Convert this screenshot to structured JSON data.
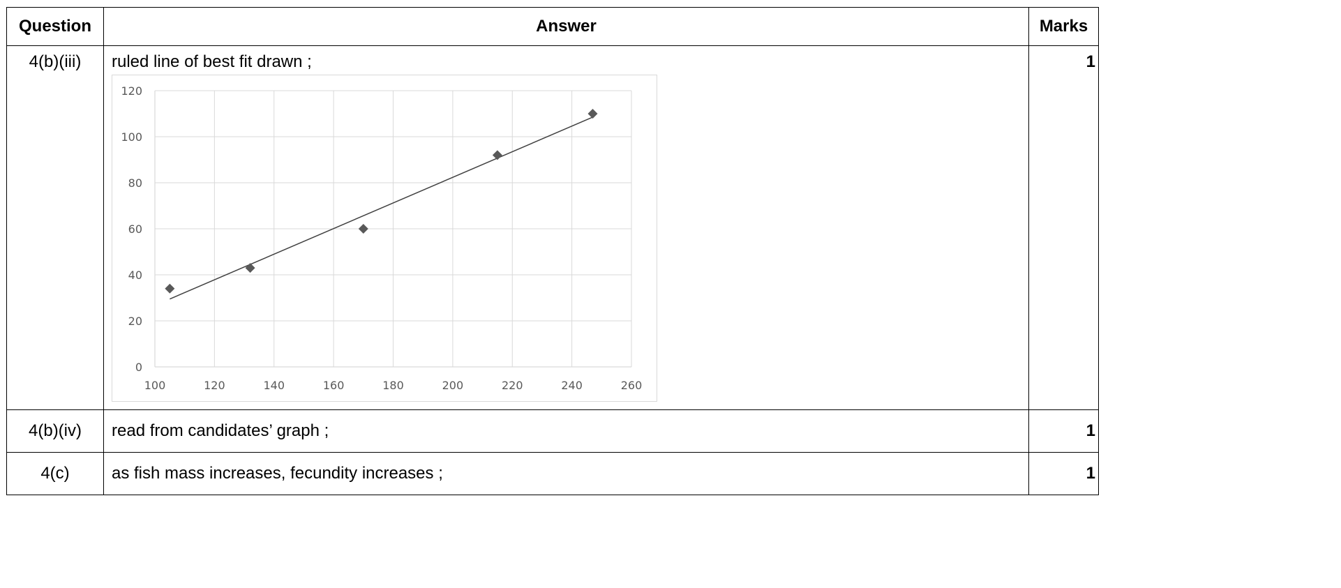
{
  "table": {
    "headers": {
      "question": "Question",
      "answer": "Answer",
      "marks": "Marks"
    },
    "rows": [
      {
        "question": "4(b)(iii)",
        "answer": "ruled line of best fit drawn ;",
        "marks": "1"
      },
      {
        "question": "4(b)(iv)",
        "answer": "read from candidates’ graph ;",
        "marks": "1"
      },
      {
        "question": "4(c)",
        "answer": "as fish mass increases, fecundity increases ;",
        "marks": "1"
      }
    ]
  },
  "chart_data": {
    "type": "scatter",
    "title": "",
    "xlabel": "",
    "ylabel": "",
    "xlim": [
      100,
      260
    ],
    "ylim": [
      0,
      120
    ],
    "xticks": [
      100,
      120,
      140,
      160,
      180,
      200,
      220,
      240,
      260
    ],
    "yticks": [
      0,
      20,
      40,
      60,
      80,
      100,
      120
    ],
    "grid": true,
    "marker": "diamond",
    "marker_color": "#595959",
    "line_color": "#404040",
    "grid_color": "#d9d9d9",
    "points": [
      {
        "x": 105,
        "y": 34
      },
      {
        "x": 132,
        "y": 43
      },
      {
        "x": 170,
        "y": 60
      },
      {
        "x": 215,
        "y": 92
      },
      {
        "x": 247,
        "y": 110
      }
    ],
    "best_fit_line": {
      "x": [
        105,
        247
      ],
      "y": [
        29.5,
        108.5
      ]
    }
  }
}
